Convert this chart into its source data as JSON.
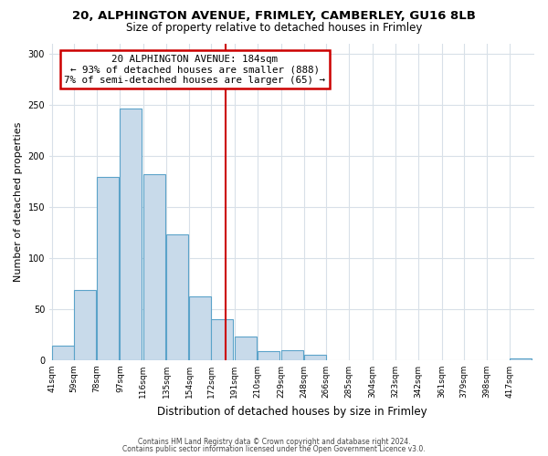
{
  "title": "20, ALPHINGTON AVENUE, FRIMLEY, CAMBERLEY, GU16 8LB",
  "subtitle": "Size of property relative to detached houses in Frimley",
  "xlabel": "Distribution of detached houses by size in Frimley",
  "ylabel": "Number of detached properties",
  "bar_labels": [
    "41sqm",
    "59sqm",
    "78sqm",
    "97sqm",
    "116sqm",
    "135sqm",
    "154sqm",
    "172sqm",
    "191sqm",
    "210sqm",
    "229sqm",
    "248sqm",
    "266sqm",
    "285sqm",
    "304sqm",
    "323sqm",
    "342sqm",
    "361sqm",
    "379sqm",
    "398sqm",
    "417sqm"
  ],
  "bar_heights": [
    14,
    69,
    179,
    246,
    182,
    123,
    62,
    40,
    23,
    9,
    10,
    5,
    0,
    0,
    0,
    0,
    0,
    0,
    0,
    0,
    2
  ],
  "bin_starts": [
    41,
    59,
    78,
    97,
    116,
    135,
    154,
    172,
    191,
    210,
    229,
    248,
    266,
    285,
    304,
    323,
    342,
    361,
    379,
    398,
    417
  ],
  "bin_width": 18,
  "bar_color": "#c8daea",
  "bar_edgecolor": "#5ba3c9",
  "vline_x": 184,
  "vline_color": "#cc0000",
  "annotation_title": "20 ALPHINGTON AVENUE: 184sqm",
  "annotation_line1": "← 93% of detached houses are smaller (888)",
  "annotation_line2": "7% of semi-detached houses are larger (65) →",
  "annotation_box_edgecolor": "#cc0000",
  "ylim": [
    0,
    310
  ],
  "yticks": [
    0,
    50,
    100,
    150,
    200,
    250,
    300
  ],
  "footer1": "Contains HM Land Registry data © Crown copyright and database right 2024.",
  "footer2": "Contains public sector information licensed under the Open Government Licence v3.0.",
  "bg_color": "#ffffff",
  "grid_color": "#d8e0e8"
}
